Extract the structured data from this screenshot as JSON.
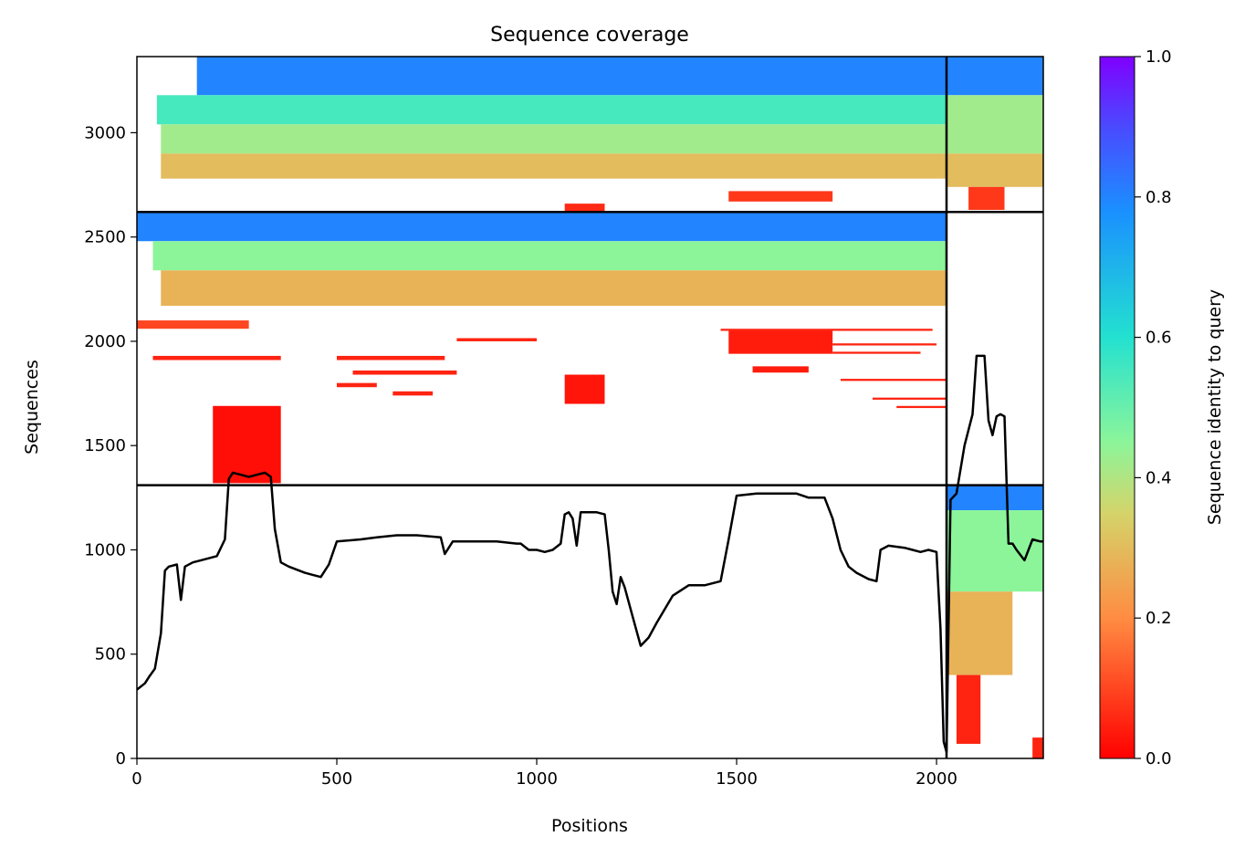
{
  "chart_data": {
    "type": "heatmap",
    "title": "Sequence coverage",
    "xlabel": "Positions",
    "ylabel": "Sequences",
    "xlim": [
      0,
      2267
    ],
    "ylim": [
      0,
      3365
    ],
    "x_ticks": [
      0,
      500,
      1000,
      1500,
      2000
    ],
    "y_ticks": [
      0,
      500,
      1000,
      1500,
      2000,
      2500,
      3000
    ],
    "grid": false,
    "colorbar": {
      "label": "Sequence identity to query",
      "range": [
        0,
        1
      ],
      "ticks": [
        "0.0",
        "0.2",
        "0.4",
        "0.6",
        "0.8",
        "1.0"
      ],
      "colormap": "rainbow",
      "colors": [
        "#ff0000",
        "#ff8c42",
        "#d4d46a",
        "#8cf59a",
        "#23e1d0",
        "#1a90ff",
        "#4a4aff",
        "#8000ff"
      ]
    },
    "block_dividers": {
      "horizontal_at_sequence": [
        1310,
        2620
      ],
      "vertical_at_position": [
        2025
      ]
    },
    "coverage_line": {
      "color": "#000000",
      "x": [
        0,
        20,
        30,
        45,
        60,
        70,
        80,
        100,
        110,
        120,
        140,
        160,
        200,
        220,
        230,
        240,
        260,
        280,
        300,
        320,
        335,
        345,
        360,
        380,
        420,
        440,
        460,
        480,
        500,
        560,
        600,
        650,
        700,
        760,
        770,
        790,
        820,
        900,
        950,
        960,
        980,
        1000,
        1020,
        1040,
        1060,
        1070,
        1080,
        1090,
        1100,
        1110,
        1150,
        1170,
        1180,
        1190,
        1200,
        1210,
        1220,
        1240,
        1260,
        1280,
        1300,
        1340,
        1380,
        1420,
        1460,
        1480,
        1500,
        1550,
        1600,
        1650,
        1680,
        1720,
        1740,
        1760,
        1780,
        1800,
        1830,
        1850,
        1860,
        1880,
        1920,
        1940,
        1960,
        1980,
        2000,
        2010,
        2018,
        2025,
        2035,
        2050,
        2070,
        2090,
        2100,
        2120,
        2130,
        2140,
        2150,
        2160,
        2170,
        2180,
        2190,
        2200,
        2220,
        2240,
        2260,
        2267
      ],
      "y": [
        330,
        360,
        390,
        430,
        600,
        900,
        920,
        930,
        760,
        920,
        940,
        950,
        970,
        1050,
        1340,
        1370,
        1360,
        1350,
        1360,
        1370,
        1350,
        1100,
        940,
        920,
        890,
        880,
        870,
        930,
        1040,
        1050,
        1060,
        1070,
        1070,
        1060,
        980,
        1040,
        1040,
        1040,
        1030,
        1030,
        1000,
        1000,
        990,
        1000,
        1030,
        1170,
        1180,
        1150,
        1020,
        1180,
        1180,
        1170,
        1000,
        800,
        740,
        870,
        820,
        680,
        540,
        580,
        650,
        780,
        830,
        830,
        850,
        1050,
        1260,
        1270,
        1270,
        1270,
        1250,
        1250,
        1150,
        1000,
        920,
        890,
        860,
        850,
        1000,
        1020,
        1010,
        1000,
        990,
        1000,
        990,
        620,
        80,
        30,
        1240,
        1270,
        1500,
        1650,
        1930,
        1930,
        1620,
        1550,
        1640,
        1650,
        1640,
        1030,
        1030,
        1000,
        950,
        1050,
        1040,
        1040
      ]
    },
    "alignment_blocks": [
      {
        "x": [
          150,
          2025
        ],
        "y": [
          3180,
          3365
        ],
        "identity": 0.8
      },
      {
        "x": [
          50,
          2025
        ],
        "y": [
          3040,
          3180
        ],
        "identity": 0.55
      },
      {
        "x": [
          60,
          2025
        ],
        "y": [
          2900,
          3040
        ],
        "identity": 0.42
      },
      {
        "x": [
          60,
          2025
        ],
        "y": [
          2780,
          2900
        ],
        "identity": 0.3
      },
      {
        "x": [
          1070,
          1170
        ],
        "y": [
          2625,
          2660
        ],
        "identity": 0.06
      },
      {
        "x": [
          1480,
          1740
        ],
        "y": [
          2670,
          2720
        ],
        "identity": 0.08
      },
      {
        "x": [
          2025,
          2267
        ],
        "y": [
          3180,
          3365
        ],
        "identity": 0.8
      },
      {
        "x": [
          2025,
          2267
        ],
        "y": [
          2900,
          3180
        ],
        "identity": 0.42
      },
      {
        "x": [
          2025,
          2267
        ],
        "y": [
          2740,
          2900
        ],
        "identity": 0.3
      },
      {
        "x": [
          2080,
          2170
        ],
        "y": [
          2630,
          2740
        ],
        "identity": 0.08
      },
      {
        "x": [
          0,
          2025
        ],
        "y": [
          2480,
          2620
        ],
        "identity": 0.8
      },
      {
        "x": [
          40,
          2025
        ],
        "y": [
          2340,
          2480
        ],
        "identity": 0.45
      },
      {
        "x": [
          60,
          2025
        ],
        "y": [
          2170,
          2340
        ],
        "identity": 0.28
      },
      {
        "x": [
          0,
          280
        ],
        "y": [
          2060,
          2100
        ],
        "identity": 0.1
      },
      {
        "x": [
          1480,
          1740
        ],
        "y": [
          1940,
          2050
        ],
        "identity": 0.04
      },
      {
        "x": [
          1540,
          1680
        ],
        "y": [
          1850,
          1880
        ],
        "identity": 0.04
      },
      {
        "x": [
          1070,
          1170
        ],
        "y": [
          1700,
          1840
        ],
        "identity": 0.03
      },
      {
        "x": [
          190,
          360
        ],
        "y": [
          1320,
          1690
        ],
        "identity": 0.02
      },
      {
        "x": [
          2025,
          2267
        ],
        "y": [
          1190,
          1310
        ],
        "identity": 0.8
      },
      {
        "x": [
          2025,
          2267
        ],
        "y": [
          800,
          1190
        ],
        "identity": 0.45
      },
      {
        "x": [
          2025,
          2190
        ],
        "y": [
          400,
          800
        ],
        "identity": 0.28
      },
      {
        "x": [
          2050,
          2110
        ],
        "y": [
          70,
          400
        ],
        "identity": 0.05
      },
      {
        "x": [
          2240,
          2267
        ],
        "y": [
          0,
          100
        ],
        "identity": 0.05
      }
    ],
    "sparse_hits": [
      {
        "x": [
          40,
          360
        ],
        "y": [
          1910,
          1930
        ],
        "identity": 0.05
      },
      {
        "x": [
          500,
          770
        ],
        "y": [
          1910,
          1930
        ],
        "identity": 0.05
      },
      {
        "x": [
          540,
          800
        ],
        "y": [
          1840,
          1860
        ],
        "identity": 0.05
      },
      {
        "x": [
          500,
          600
        ],
        "y": [
          1780,
          1800
        ],
        "identity": 0.05
      },
      {
        "x": [
          640,
          740
        ],
        "y": [
          1740,
          1760
        ],
        "identity": 0.05
      },
      {
        "x": [
          800,
          1000
        ],
        "y": [
          2000,
          2015
        ],
        "identity": 0.05
      },
      {
        "x": [
          1460,
          1990
        ],
        "y": [
          2050,
          2060
        ],
        "identity": 0.05
      },
      {
        "x": [
          1740,
          2000
        ],
        "y": [
          1980,
          1990
        ],
        "identity": 0.05
      },
      {
        "x": [
          1740,
          1960
        ],
        "y": [
          1940,
          1950
        ],
        "identity": 0.05
      },
      {
        "x": [
          1760,
          2025
        ],
        "y": [
          1810,
          1820
        ],
        "identity": 0.05
      },
      {
        "x": [
          1840,
          2025
        ],
        "y": [
          1720,
          1730
        ],
        "identity": 0.05
      },
      {
        "x": [
          1900,
          2025
        ],
        "y": [
          1680,
          1690
        ],
        "identity": 0.05
      }
    ]
  }
}
